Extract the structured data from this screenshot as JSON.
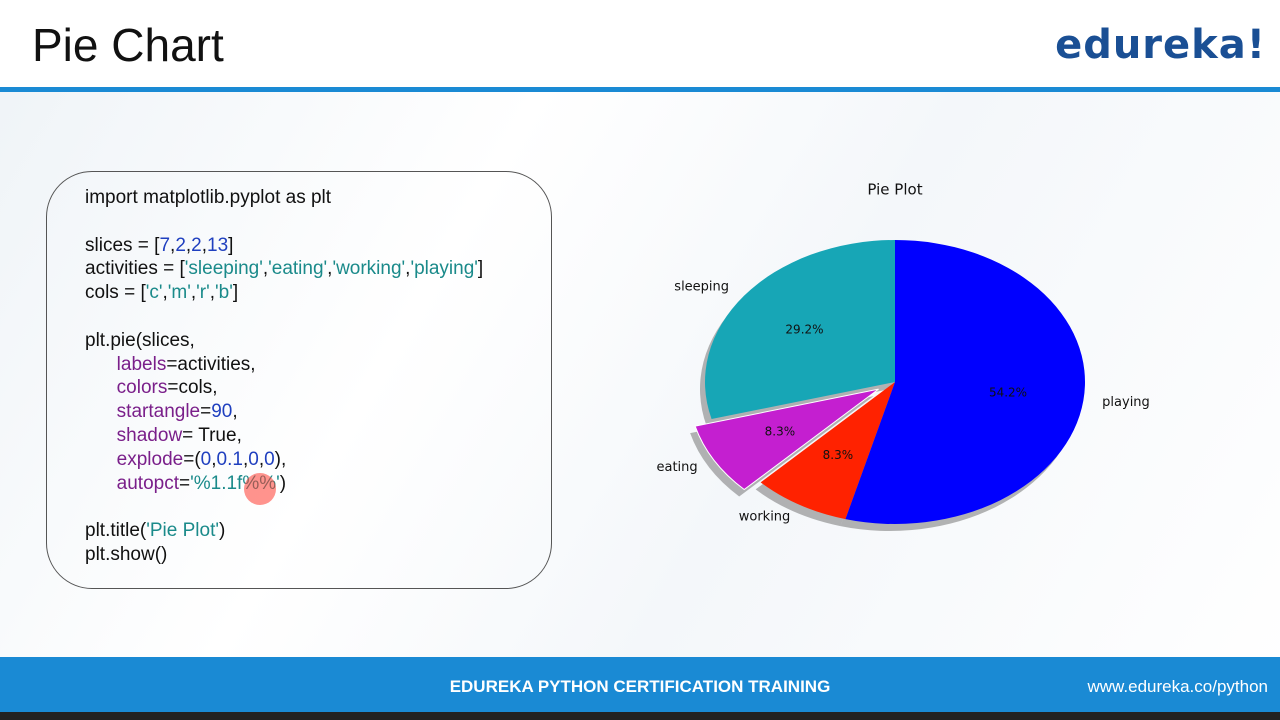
{
  "header": {
    "title": "Pie Chart",
    "logo": "edureka!"
  },
  "code": {
    "blocks": [
      [
        "import matplotlib.pyplot as plt"
      ],
      [
        "slices = [7,2,2,13]",
        "activities = ['sleeping','eating','working','playing']",
        "cols = ['c','m','r','b']"
      ],
      [
        "plt.pie(slices,",
        "      labels=activities,",
        "      colors=cols,",
        "      startangle=90,",
        "      shadow= True,",
        "      explode=(0,0.1,0,0),",
        "      autopct='%1.1f%%')"
      ],
      [
        "plt.title('Pie Plot')",
        "plt.show()"
      ]
    ]
  },
  "chart_data": {
    "type": "pie",
    "title": "Pie Plot",
    "categories": [
      "sleeping",
      "eating",
      "working",
      "playing"
    ],
    "values": [
      29.2,
      8.3,
      8.3,
      54.2
    ],
    "value_labels": [
      "29.2%",
      "8.3%",
      "8.3%",
      "54.2%"
    ],
    "colors": [
      "#17a6b6",
      "#c41fd0",
      "#ff2200",
      "#0000ff"
    ],
    "startangle": 90,
    "explode": [
      0,
      0.1,
      0,
      0
    ],
    "shadow": true
  },
  "footer": {
    "title": "EDUREKA PYTHON CERTIFICATION TRAINING",
    "url": "www.edureka.co/python"
  }
}
